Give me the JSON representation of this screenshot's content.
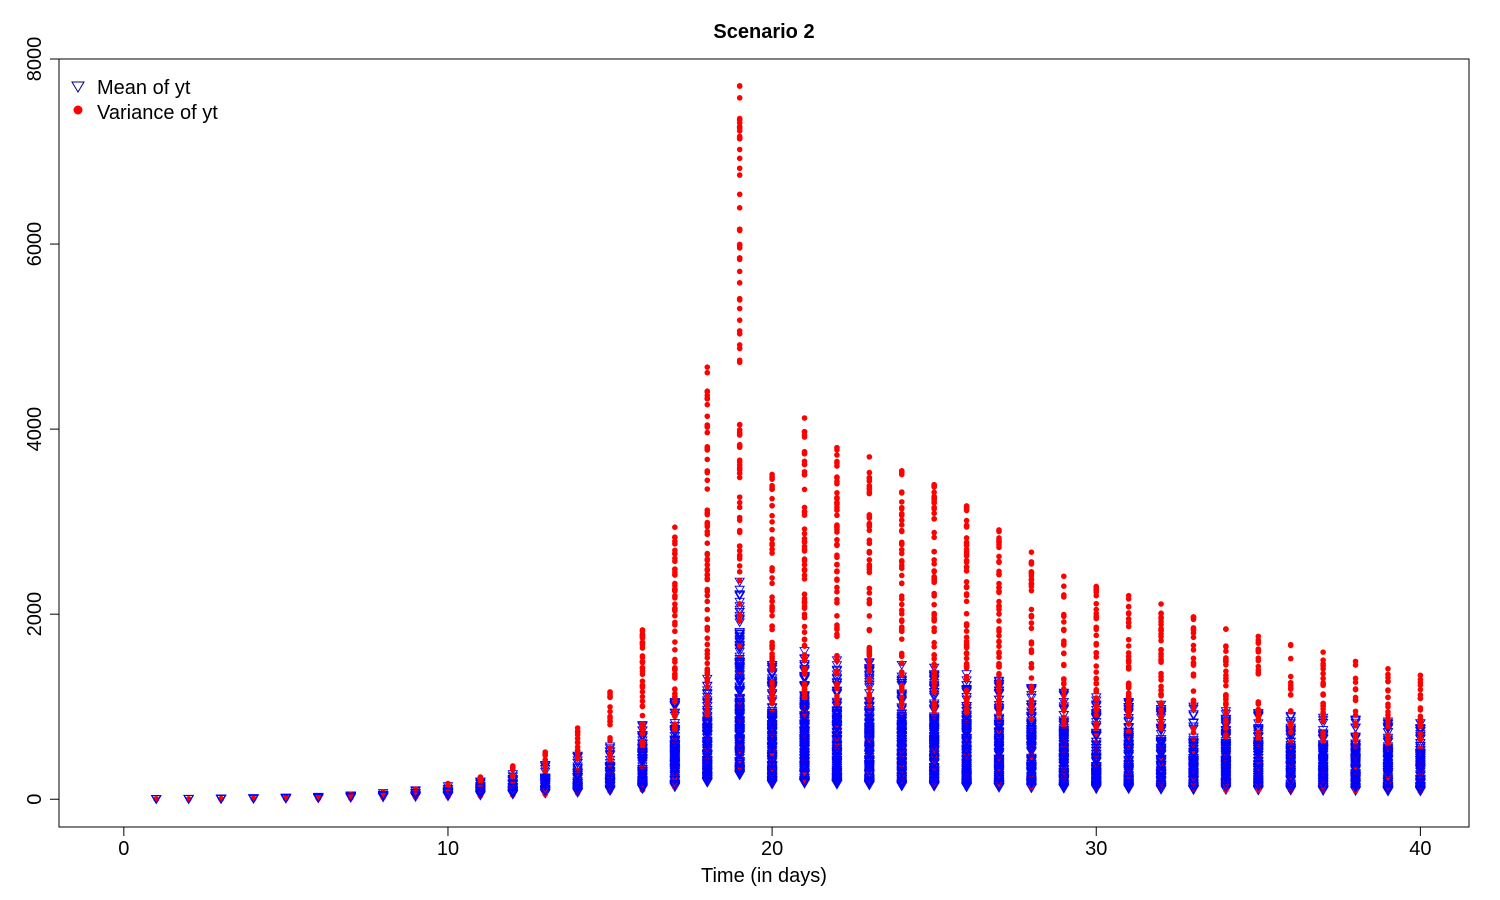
{
  "chart_data": {
    "type": "scatter",
    "title": "Scenario 2",
    "xlabel": "Time (in days)",
    "ylabel": "",
    "xlim": [
      -2,
      41.5
    ],
    "ylim": [
      -300,
      8000
    ],
    "xticks": [
      0,
      10,
      20,
      30,
      40
    ],
    "yticks": [
      0,
      2000,
      4000,
      6000,
      8000
    ],
    "grid": false,
    "legend_position": "top-left",
    "series": [
      {
        "name": "Mean of yt",
        "marker": "open-down-triangle",
        "color": "#0000ff",
        "fill": "#0000ff",
        "edge": "#000080",
        "ranges": [
          {
            "x": 1,
            "min": 0,
            "max": 2
          },
          {
            "x": 2,
            "min": 1,
            "max": 3
          },
          {
            "x": 3,
            "min": 2,
            "max": 6
          },
          {
            "x": 4,
            "min": 4,
            "max": 10
          },
          {
            "x": 5,
            "min": 6,
            "max": 16
          },
          {
            "x": 6,
            "min": 10,
            "max": 25
          },
          {
            "x": 7,
            "min": 14,
            "max": 40
          },
          {
            "x": 8,
            "min": 20,
            "max": 65
          },
          {
            "x": 9,
            "min": 25,
            "max": 95
          },
          {
            "x": 10,
            "min": 30,
            "max": 140
          },
          {
            "x": 11,
            "min": 40,
            "max": 190
          },
          {
            "x": 12,
            "min": 50,
            "max": 270
          },
          {
            "x": 13,
            "min": 60,
            "max": 370
          },
          {
            "x": 14,
            "min": 70,
            "max": 470
          },
          {
            "x": 15,
            "min": 90,
            "max": 570
          },
          {
            "x": 16,
            "min": 110,
            "max": 800
          },
          {
            "x": 17,
            "min": 130,
            "max": 1050
          },
          {
            "x": 18,
            "min": 180,
            "max": 1300
          },
          {
            "x": 19,
            "min": 260,
            "max": 2350
          },
          {
            "x": 20,
            "min": 160,
            "max": 1450
          },
          {
            "x": 21,
            "min": 170,
            "max": 1600
          },
          {
            "x": 22,
            "min": 160,
            "max": 1500
          },
          {
            "x": 23,
            "min": 150,
            "max": 1480
          },
          {
            "x": 24,
            "min": 140,
            "max": 1450
          },
          {
            "x": 25,
            "min": 135,
            "max": 1420
          },
          {
            "x": 26,
            "min": 130,
            "max": 1350
          },
          {
            "x": 27,
            "min": 125,
            "max": 1280
          },
          {
            "x": 28,
            "min": 120,
            "max": 1200
          },
          {
            "x": 29,
            "min": 115,
            "max": 1150
          },
          {
            "x": 30,
            "min": 110,
            "max": 1100
          },
          {
            "x": 31,
            "min": 110,
            "max": 1050
          },
          {
            "x": 32,
            "min": 105,
            "max": 1020
          },
          {
            "x": 33,
            "min": 100,
            "max": 1000
          },
          {
            "x": 34,
            "min": 100,
            "max": 950
          },
          {
            "x": 35,
            "min": 95,
            "max": 930
          },
          {
            "x": 36,
            "min": 95,
            "max": 900
          },
          {
            "x": 37,
            "min": 90,
            "max": 880
          },
          {
            "x": 38,
            "min": 90,
            "max": 860
          },
          {
            "x": 39,
            "min": 85,
            "max": 840
          },
          {
            "x": 40,
            "min": 85,
            "max": 820
          }
        ]
      },
      {
        "name": "Variance of yt",
        "marker": "filled-circle",
        "color": "#ff0000",
        "ranges": [
          {
            "x": 1,
            "min": 0,
            "max": 2
          },
          {
            "x": 2,
            "min": 1,
            "max": 3
          },
          {
            "x": 3,
            "min": 2,
            "max": 6
          },
          {
            "x": 4,
            "min": 3,
            "max": 10
          },
          {
            "x": 5,
            "min": 5,
            "max": 18
          },
          {
            "x": 6,
            "min": 8,
            "max": 30
          },
          {
            "x": 7,
            "min": 12,
            "max": 55
          },
          {
            "x": 8,
            "min": 18,
            "max": 80
          },
          {
            "x": 9,
            "min": 22,
            "max": 110
          },
          {
            "x": 10,
            "min": 28,
            "max": 170
          },
          {
            "x": 11,
            "min": 35,
            "max": 240
          },
          {
            "x": 12,
            "min": 45,
            "max": 360
          },
          {
            "x": 13,
            "min": 55,
            "max": 510
          },
          {
            "x": 14,
            "min": 65,
            "max": 770
          },
          {
            "x": 15,
            "min": 85,
            "max": 1160
          },
          {
            "x": 16,
            "min": 100,
            "max": 1830
          },
          {
            "x": 17,
            "min": 130,
            "max": 2940
          },
          {
            "x": 18,
            "min": 210,
            "max": 4670
          },
          {
            "x": 19,
            "min": 330,
            "max": 7710
          },
          {
            "x": 20,
            "min": 170,
            "max": 3510
          },
          {
            "x": 21,
            "min": 180,
            "max": 4120
          },
          {
            "x": 22,
            "min": 170,
            "max": 3800
          },
          {
            "x": 23,
            "min": 165,
            "max": 3700
          },
          {
            "x": 24,
            "min": 155,
            "max": 3550
          },
          {
            "x": 25,
            "min": 150,
            "max": 3400
          },
          {
            "x": 26,
            "min": 140,
            "max": 3170
          },
          {
            "x": 27,
            "min": 135,
            "max": 2910
          },
          {
            "x": 28,
            "min": 130,
            "max": 2670
          },
          {
            "x": 29,
            "min": 125,
            "max": 2410
          },
          {
            "x": 30,
            "min": 120,
            "max": 2300
          },
          {
            "x": 31,
            "min": 115,
            "max": 2200
          },
          {
            "x": 32,
            "min": 110,
            "max": 2110
          },
          {
            "x": 33,
            "min": 105,
            "max": 1970
          },
          {
            "x": 34,
            "min": 100,
            "max": 1840
          },
          {
            "x": 35,
            "min": 100,
            "max": 1760
          },
          {
            "x": 36,
            "min": 95,
            "max": 1670
          },
          {
            "x": 37,
            "min": 95,
            "max": 1590
          },
          {
            "x": 38,
            "min": 90,
            "max": 1490
          },
          {
            "x": 39,
            "min": 90,
            "max": 1410
          },
          {
            "x": 40,
            "min": 85,
            "max": 1340
          }
        ],
        "outliers": [
          {
            "x": 18,
            "y": 4410
          },
          {
            "x": 18,
            "y": 3530
          },
          {
            "x": 18,
            "y": 2990
          },
          {
            "x": 19,
            "y": 7260
          },
          {
            "x": 19,
            "y": 5850
          },
          {
            "x": 19,
            "y": 4910
          },
          {
            "x": 20,
            "y": 3350
          },
          {
            "x": 20,
            "y": 2660
          },
          {
            "x": 21,
            "y": 3970
          },
          {
            "x": 21,
            "y": 3070
          },
          {
            "x": 22,
            "y": 3630
          },
          {
            "x": 22,
            "y": 2750
          },
          {
            "x": 23,
            "y": 3530
          },
          {
            "x": 23,
            "y": 2510
          },
          {
            "x": 24,
            "y": 3320
          },
          {
            "x": 25,
            "y": 3090
          },
          {
            "x": 26,
            "y": 2960
          },
          {
            "x": 27,
            "y": 2750
          },
          {
            "x": 28,
            "y": 2550
          },
          {
            "x": 30,
            "y": 2200
          },
          {
            "x": 31,
            "y": 2080
          },
          {
            "x": 32,
            "y": 1920
          },
          {
            "x": 33,
            "y": 1750
          },
          {
            "x": 34,
            "y": 1600
          },
          {
            "x": 17,
            "y": 2650
          },
          {
            "x": 17,
            "y": 2250
          },
          {
            "x": 16,
            "y": 1680
          }
        ]
      }
    ]
  }
}
